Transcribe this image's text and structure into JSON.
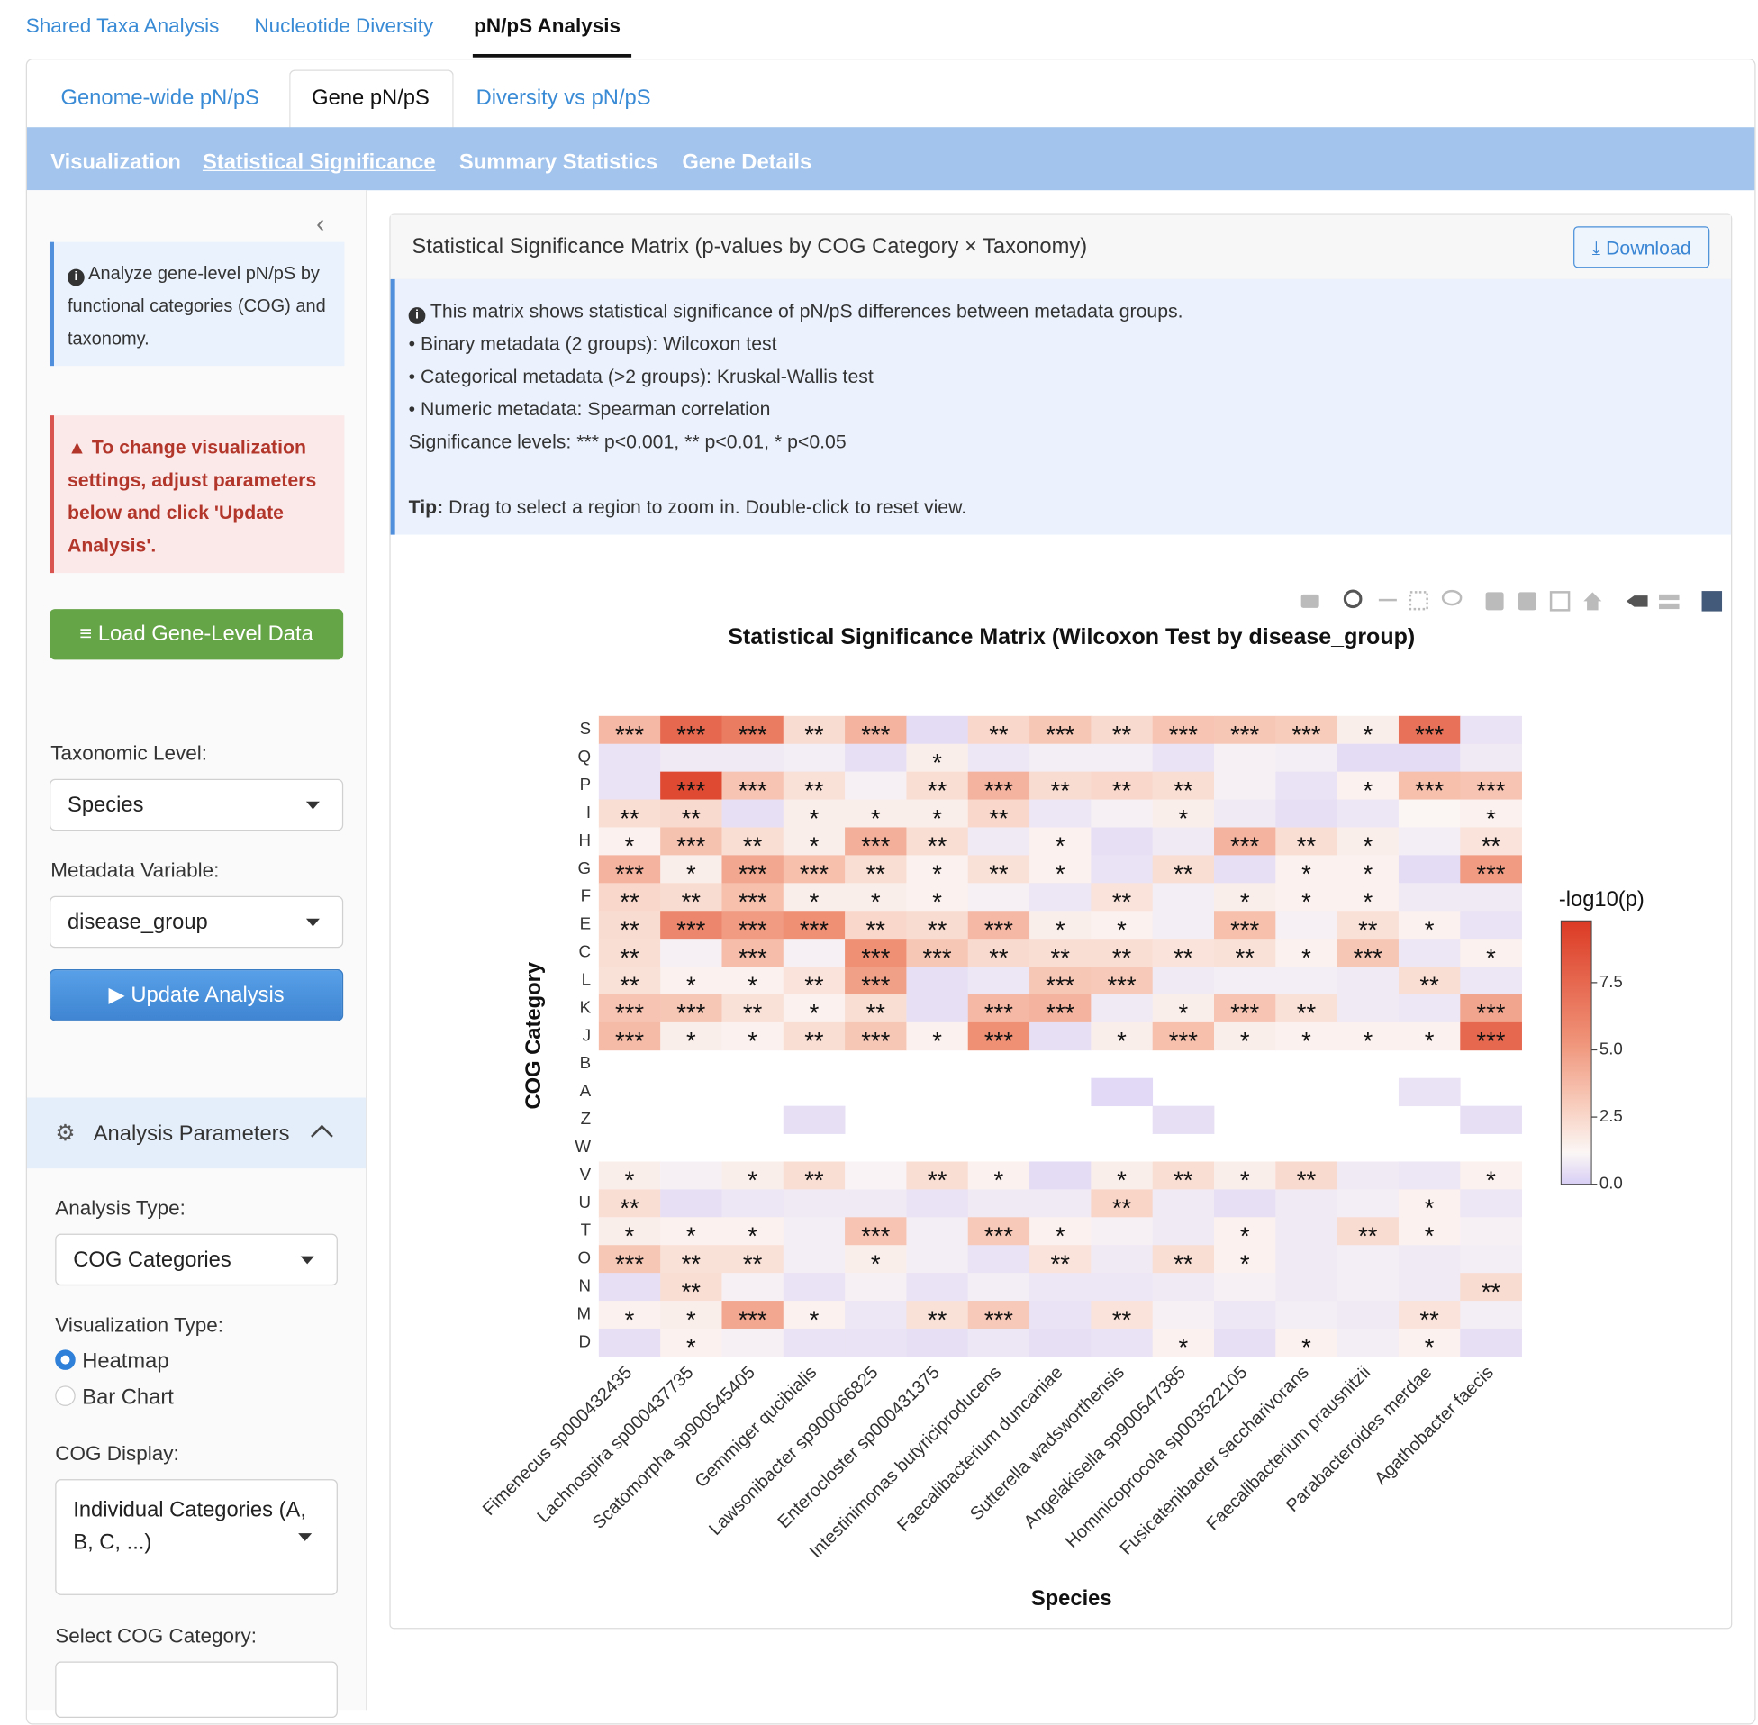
{
  "top_tabs": [
    "Shared Taxa Analysis",
    "Nucleotide Diversity",
    "pN/pS Analysis"
  ],
  "sub_tabs": [
    "Genome-wide pN/pS",
    "Gene pN/pS",
    "Diversity vs pN/pS"
  ],
  "nav": [
    "Visualization",
    "Statistical Significance",
    "Summary Statistics",
    "Gene Details"
  ],
  "sidebar": {
    "info": "Analyze gene-level pN/pS by functional categories (COG) and taxonomy.",
    "warning": "To change visualization settings, adjust parameters below and click 'Update Analysis'.",
    "load_button": "Load Gene-Level Data",
    "taxonomic_level_label": "Taxonomic Level:",
    "taxonomic_level": "Species",
    "metadata_label": "Metadata Variable:",
    "metadata": "disease_group",
    "update_button": "Update Analysis",
    "parameters_title": "Analysis Parameters",
    "analysis_type_label": "Analysis Type:",
    "analysis_type": "COG Categories",
    "viz_type_label": "Visualization Type:",
    "viz_options": [
      "Heatmap",
      "Bar Chart"
    ],
    "cog_display_label": "COG Display:",
    "cog_display": "Individual Categories (A, B, C, ...)",
    "select_cog_label": "Select COG Category:"
  },
  "card": {
    "title": "Statistical Significance Matrix (p-values by COG Category × Taxonomy)",
    "download": "Download",
    "info_lines": [
      "This matrix shows statistical significance of pN/pS differences between metadata groups.",
      "• Binary metadata (2 groups): Wilcoxon test",
      "• Categorical metadata (>2 groups): Kruskal-Wallis test",
      "• Numeric metadata: Spearman correlation",
      "Significance levels: *** p<0.001, ** p<0.01, * p<0.05"
    ],
    "tip_label": "Tip:",
    "tip": "Drag to select a region to zoom in. Double-click to reset view."
  },
  "chart_data": {
    "type": "heatmap",
    "title": "Statistical Significance Matrix (Wilcoxon Test by disease_group)",
    "x_label": "Species",
    "y_label": "COG Category",
    "categories": [
      "Fimenecus sp000432435",
      "Lachnospira sp000437735",
      "Scatomorpha sp900545405",
      "Gemmiger qucibialis",
      "Lawsonibacter sp900066825",
      "Enterocloster sp000431375",
      "Intestinimonas butyriciproducens",
      "Faecalibacterium duncaniae",
      "Sutterella wadsworthensis",
      "Angelakisella sp900547385",
      "Hominicoprocola sp003522105",
      "Fusicatenibacter saccharivorans",
      "Faecalibacterium prausnitzii",
      "Parabacteroides merdae",
      "Agathobacter faecis"
    ],
    "y_categories": [
      "S",
      "Q",
      "P",
      "I",
      "H",
      "G",
      "F",
      "E",
      "C",
      "L",
      "K",
      "J",
      "B",
      "A",
      "Z",
      "W",
      "V",
      "U",
      "T",
      "O",
      "N",
      "M",
      "D"
    ],
    "values": [
      [
        3.8,
        7.5,
        6.5,
        2.3,
        4.0,
        0.4,
        2.5,
        3.2,
        2.4,
        3.3,
        3.2,
        3.0,
        1.5,
        7.0,
        0.6
      ],
      [
        0.6,
        0.8,
        0.8,
        0.9,
        0.5,
        1.5,
        0.7,
        0.9,
        0.9,
        0.6,
        1.0,
        0.9,
        0.4,
        0.4,
        0.8
      ],
      [
        0.6,
        9.0,
        3.3,
        2.1,
        1.0,
        2.2,
        4.0,
        2.3,
        2.5,
        2.2,
        1.0,
        0.6,
        1.4,
        3.5,
        3.3
      ],
      [
        2.2,
        2.4,
        0.5,
        1.5,
        1.5,
        1.5,
        2.5,
        0.7,
        1.0,
        1.5,
        0.8,
        0.5,
        0.7,
        1.2,
        1.4
      ],
      [
        1.4,
        3.4,
        2.2,
        1.5,
        4.2,
        2.2,
        0.8,
        1.4,
        0.5,
        0.8,
        4.0,
        2.2,
        1.5,
        0.9,
        2.0
      ],
      [
        4.0,
        1.5,
        4.5,
        3.5,
        2.2,
        1.4,
        2.1,
        1.4,
        0.6,
        2.2,
        0.5,
        1.4,
        1.4,
        0.4,
        5.0
      ],
      [
        2.5,
        2.3,
        3.5,
        1.5,
        1.5,
        1.4,
        1.0,
        0.7,
        2.0,
        0.9,
        1.5,
        1.4,
        1.4,
        0.8,
        0.8
      ],
      [
        2.3,
        6.0,
        5.0,
        5.5,
        2.5,
        2.3,
        3.8,
        1.5,
        1.4,
        0.9,
        3.5,
        1.0,
        2.1,
        1.4,
        0.6
      ],
      [
        2.2,
        1.0,
        3.6,
        1.0,
        5.5,
        3.2,
        2.4,
        2.2,
        2.2,
        2.0,
        2.1,
        1.4,
        3.2,
        0.7,
        1.4
      ],
      [
        2.1,
        1.4,
        1.4,
        2.0,
        4.8,
        0.5,
        0.7,
        3.2,
        3.1,
        0.8,
        0.9,
        0.9,
        0.8,
        2.2,
        0.7
      ],
      [
        3.3,
        3.2,
        2.1,
        1.4,
        2.2,
        0.5,
        3.8,
        4.0,
        0.8,
        1.5,
        3.3,
        2.1,
        0.8,
        0.7,
        4.6
      ],
      [
        3.7,
        1.5,
        1.4,
        2.2,
        3.2,
        1.4,
        5.5,
        0.5,
        1.5,
        3.5,
        1.5,
        1.4,
        1.4,
        1.4,
        7.5
      ],
      [
        null,
        null,
        null,
        null,
        null,
        null,
        null,
        null,
        null,
        null,
        null,
        null,
        null,
        null,
        null
      ],
      [
        null,
        null,
        null,
        null,
        null,
        null,
        null,
        null,
        0.3,
        null,
        null,
        null,
        null,
        0.6,
        null
      ],
      [
        null,
        null,
        null,
        0.5,
        null,
        null,
        null,
        null,
        null,
        0.5,
        null,
        null,
        null,
        null,
        0.5
      ],
      [
        null,
        null,
        null,
        null,
        null,
        null,
        null,
        null,
        null,
        null,
        null,
        null,
        null,
        null,
        null
      ],
      [
        1.5,
        1.0,
        1.5,
        2.2,
        1.1,
        2.2,
        1.4,
        0.4,
        1.5,
        2.2,
        1.5,
        2.4,
        0.8,
        0.7,
        1.4
      ],
      [
        2.2,
        0.5,
        0.7,
        0.8,
        0.8,
        0.6,
        0.8,
        0.8,
        2.6,
        0.8,
        0.5,
        0.8,
        0.9,
        1.4,
        0.7
      ],
      [
        1.5,
        1.4,
        1.4,
        0.9,
        3.3,
        0.9,
        3.1,
        1.4,
        1.0,
        0.8,
        1.4,
        0.8,
        2.3,
        1.4,
        1.0
      ],
      [
        3.2,
        2.1,
        2.1,
        0.9,
        1.5,
        0.9,
        0.6,
        2.0,
        0.8,
        2.2,
        1.4,
        0.8,
        0.9,
        0.8,
        0.9
      ],
      [
        0.5,
        2.2,
        1.0,
        0.6,
        1.0,
        0.6,
        0.9,
        0.7,
        0.7,
        0.8,
        1.0,
        0.8,
        0.9,
        0.8,
        2.3
      ],
      [
        1.4,
        1.5,
        4.5,
        1.4,
        0.7,
        2.1,
        3.1,
        0.6,
        2.0,
        1.0,
        0.7,
        0.9,
        0.8,
        2.0,
        0.9
      ],
      [
        0.5,
        1.4,
        1.0,
        0.6,
        0.6,
        0.5,
        0.7,
        0.5,
        0.6,
        1.4,
        0.5,
        1.4,
        0.9,
        1.4,
        0.5
      ]
    ],
    "annotations": [
      [
        "***",
        "***",
        "***",
        "**",
        "***",
        null,
        "**",
        "***",
        "**",
        "***",
        "***",
        "***",
        "*",
        "***",
        null
      ],
      [
        null,
        null,
        null,
        null,
        null,
        "*",
        null,
        null,
        null,
        null,
        null,
        null,
        null,
        null,
        null
      ],
      [
        null,
        "***",
        "***",
        "**",
        null,
        "**",
        "***",
        "**",
        "**",
        "**",
        null,
        null,
        "*",
        "***",
        "***"
      ],
      [
        "**",
        "**",
        null,
        "*",
        "*",
        "*",
        "**",
        null,
        null,
        "*",
        null,
        null,
        null,
        null,
        "*"
      ],
      [
        "*",
        "***",
        "**",
        "*",
        "***",
        "**",
        null,
        "*",
        null,
        null,
        "***",
        "**",
        "*",
        null,
        "**"
      ],
      [
        "***",
        "*",
        "***",
        "***",
        "**",
        "*",
        "**",
        "*",
        null,
        "**",
        null,
        "*",
        "*",
        null,
        "***"
      ],
      [
        "**",
        "**",
        "***",
        "*",
        "*",
        "*",
        null,
        null,
        "**",
        null,
        "*",
        "*",
        "*",
        null,
        null
      ],
      [
        "**",
        "***",
        "***",
        "***",
        "**",
        "**",
        "***",
        "*",
        "*",
        null,
        "***",
        null,
        "**",
        "*",
        null
      ],
      [
        "**",
        null,
        "***",
        null,
        "***",
        "***",
        "**",
        "**",
        "**",
        "**",
        "**",
        "*",
        "***",
        null,
        "*"
      ],
      [
        "**",
        "*",
        "*",
        "**",
        "***",
        null,
        null,
        "***",
        "***",
        null,
        null,
        null,
        null,
        "**",
        null
      ],
      [
        "***",
        "***",
        "**",
        "*",
        "**",
        null,
        "***",
        "***",
        null,
        "*",
        "***",
        "**",
        null,
        null,
        "***"
      ],
      [
        "***",
        "*",
        "*",
        "**",
        "***",
        "*",
        "***",
        null,
        "*",
        "***",
        "*",
        "*",
        "*",
        "*",
        "***"
      ],
      [
        null,
        null,
        null,
        null,
        null,
        null,
        null,
        null,
        null,
        null,
        null,
        null,
        null,
        null,
        null
      ],
      [
        null,
        null,
        null,
        null,
        null,
        null,
        null,
        null,
        null,
        null,
        null,
        null,
        null,
        null,
        null
      ],
      [
        null,
        null,
        null,
        null,
        null,
        null,
        null,
        null,
        null,
        null,
        null,
        null,
        null,
        null,
        null
      ],
      [
        null,
        null,
        null,
        null,
        null,
        null,
        null,
        null,
        null,
        null,
        null,
        null,
        null,
        null,
        null
      ],
      [
        "*",
        null,
        "*",
        "**",
        null,
        "**",
        "*",
        null,
        "*",
        "**",
        "*",
        "**",
        null,
        null,
        "*"
      ],
      [
        "**",
        null,
        null,
        null,
        null,
        null,
        null,
        null,
        "**",
        null,
        null,
        null,
        null,
        "*",
        null
      ],
      [
        "*",
        "*",
        "*",
        null,
        "***",
        null,
        "***",
        "*",
        null,
        null,
        "*",
        null,
        "**",
        "*",
        null
      ],
      [
        "***",
        "**",
        "**",
        null,
        "*",
        null,
        null,
        "**",
        null,
        "**",
        "*",
        null,
        null,
        null,
        null
      ],
      [
        null,
        "**",
        null,
        null,
        null,
        null,
        null,
        null,
        null,
        null,
        null,
        null,
        null,
        null,
        "**"
      ],
      [
        "*",
        "*",
        "***",
        "*",
        null,
        "**",
        "***",
        null,
        "**",
        null,
        null,
        null,
        null,
        "**",
        null
      ],
      [
        null,
        "*",
        null,
        null,
        null,
        null,
        null,
        null,
        null,
        "*",
        null,
        "*",
        null,
        "*",
        null
      ]
    ],
    "colorbar_title": "-log10(p)",
    "zlim": [
      0,
      9.8
    ],
    "zticks": [
      {
        "value": 0,
        "label": "0.0"
      },
      2.5,
      {
        "value": 5,
        "label": "5.0"
      },
      7.5
    ],
    "colorscale": [
      [
        0,
        "#d8cff5"
      ],
      [
        0.12,
        "#fbf6f5"
      ],
      [
        0.3,
        "#f8cdbd"
      ],
      [
        0.55,
        "#ef9277"
      ],
      [
        1,
        "#dc3a24"
      ]
    ]
  }
}
